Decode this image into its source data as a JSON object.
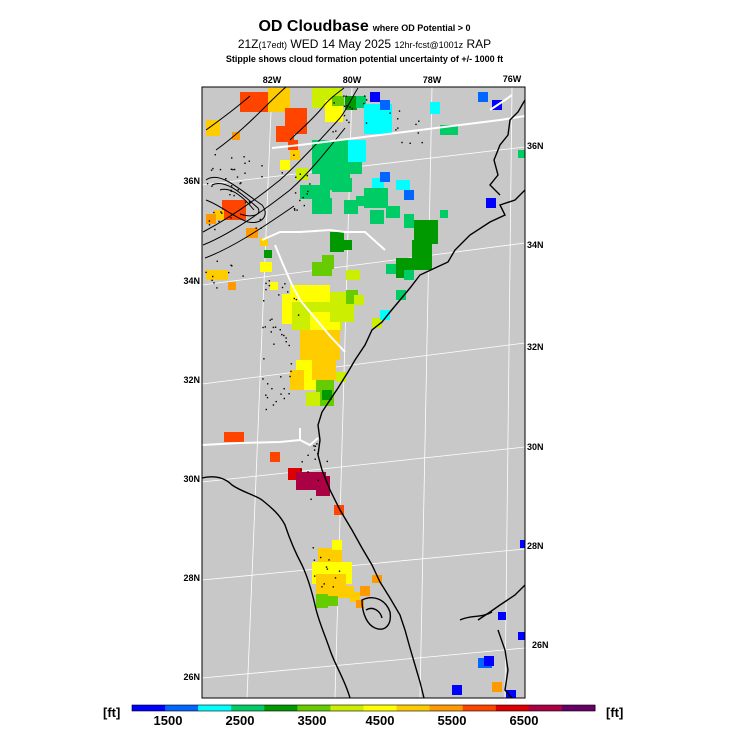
{
  "title": {
    "main": "OD Cloudbase",
    "main_suffix": "where OD Potential > 0",
    "valid_prefix": "21Z",
    "valid_local": "(17edt)",
    "valid_date": "WED 14 May 2025",
    "forecast_info": "12hr-fcst@1001z",
    "model": "RAP",
    "stipple_note": "Stipple shows cloud formation potential uncertainty of +/- 1000 ft"
  },
  "longitude_labels": [
    "82W",
    "80W",
    "78W",
    "76W"
  ],
  "latitude_labels_left": [
    "36N",
    "34N",
    "32N",
    "30N",
    "28N",
    "26N"
  ],
  "latitude_labels_right": [
    "36N",
    "34N",
    "32N",
    "30N",
    "28N",
    "26N"
  ],
  "colorbar": {
    "unit_left": "[ft]",
    "unit_right": "[ft]",
    "tick_labels": [
      "1500",
      "2500",
      "3500",
      "4500",
      "5500",
      "6500"
    ],
    "colors": [
      "#0000ff",
      "#0066ff",
      "#00ffff",
      "#00cc66",
      "#009900",
      "#66cc00",
      "#ccee00",
      "#ffff00",
      "#ffcc00",
      "#ff9900",
      "#ff4400",
      "#dd0000",
      "#aa0044",
      "#660066"
    ]
  },
  "colors": {
    "land_ocean_background": "#c8c8c8",
    "coastline": "#000000",
    "state_lines": "#ffffff",
    "graticule": "#ffffff"
  }
}
